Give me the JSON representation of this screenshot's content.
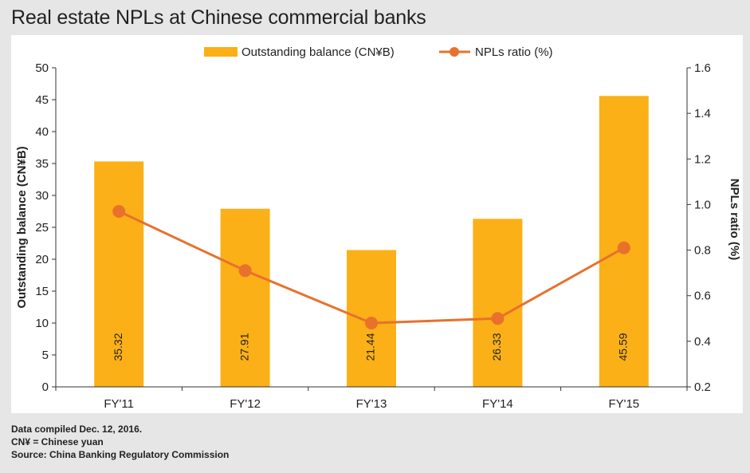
{
  "title": "Real estate NPLs at Chinese commercial banks",
  "chart_data": {
    "type": "bar+line",
    "title": "Real estate NPLs at Chinese commercial banks",
    "categories": [
      "FY'11",
      "FY'12",
      "FY'13",
      "FY'14",
      "FY'15"
    ],
    "series": [
      {
        "name": "Outstanding balance (CN¥B)",
        "type": "bar",
        "axis": "left",
        "color": "#FBB017",
        "values": [
          35.32,
          27.91,
          21.44,
          26.33,
          45.59
        ],
        "labels": [
          "35.32",
          "27.91",
          "21.44",
          "26.33",
          "45.59"
        ]
      },
      {
        "name": "NPLs ratio (%)",
        "type": "line",
        "axis": "right",
        "color": "#E8712C",
        "values": [
          0.97,
          0.71,
          0.48,
          0.5,
          0.81
        ]
      }
    ],
    "ylabel_left": "Outstanding balance (CN¥B)",
    "ylabel_right": "NPLs ratio (%)",
    "ylim_left": [
      0,
      50
    ],
    "yticks_left": [
      "0",
      "5",
      "10",
      "15",
      "20",
      "25",
      "30",
      "35",
      "40",
      "45",
      "50"
    ],
    "ylim_right": [
      0.2,
      1.6
    ],
    "yticks_right": [
      "0.2",
      "0.4",
      "0.6",
      "0.8",
      "1.0",
      "1.2",
      "1.4",
      "1.6"
    ],
    "legend_position": "top-center",
    "grid": false
  },
  "notes": [
    "Data compiled Dec. 12, 2016.",
    "CN¥ = Chinese yuan",
    "Source: China Banking Regulatory Commission"
  ]
}
